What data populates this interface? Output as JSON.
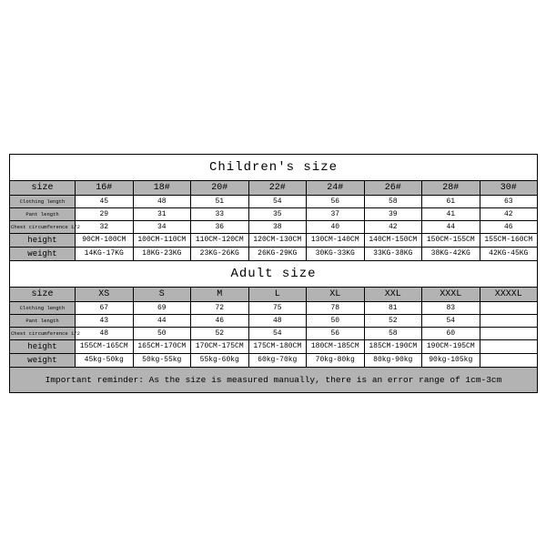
{
  "colors": {
    "header_bg": "#b3b3b3",
    "data_bg": "#ffffff",
    "border": "#000000",
    "text": "#000000"
  },
  "children": {
    "title": "Children's size",
    "size_label": "size",
    "sizes": [
      "16#",
      "18#",
      "20#",
      "22#",
      "24#",
      "26#",
      "28#",
      "30#"
    ],
    "rows": [
      {
        "label": "Clothing length",
        "cells": [
          "45",
          "48",
          "51",
          "54",
          "56",
          "58",
          "61",
          "63"
        ],
        "label_class": "lbl-sm"
      },
      {
        "label": "Pant length",
        "cells": [
          "29",
          "31",
          "33",
          "35",
          "37",
          "39",
          "41",
          "42"
        ],
        "label_class": "lbl-sm"
      },
      {
        "label": "Chest circumference 1/2",
        "cells": [
          "32",
          "34",
          "36",
          "38",
          "40",
          "42",
          "44",
          "46"
        ],
        "label_class": "lbl-sm"
      },
      {
        "label": "height",
        "cells": [
          "90CM-100CM",
          "100CM-110CM",
          "110CM-120CM",
          "120CM-130CM",
          "130CM-140CM",
          "140CM-150CM",
          "150CM-155CM",
          "155CM-160CM"
        ],
        "label_class": "lbl-md"
      },
      {
        "label": "weight",
        "cells": [
          "14KG-17KG",
          "18KG-23KG",
          "23KG-26KG",
          "26KG-29KG",
          "30KG-33KG",
          "33KG-38KG",
          "38KG-42KG",
          "42KG-45KG"
        ],
        "label_class": "lbl-md"
      }
    ]
  },
  "adult": {
    "title": "Adult size",
    "size_label": "size",
    "sizes": [
      "XS",
      "S",
      "M",
      "L",
      "XL",
      "XXL",
      "XXXL",
      "XXXXL"
    ],
    "rows": [
      {
        "label": "Clothing length",
        "cells": [
          "67",
          "69",
          "72",
          "75",
          "78",
          "81",
          "83",
          ""
        ],
        "label_class": "lbl-sm"
      },
      {
        "label": "Pant length",
        "cells": [
          "43",
          "44",
          "46",
          "48",
          "50",
          "52",
          "54",
          ""
        ],
        "label_class": "lbl-sm"
      },
      {
        "label": "Chest circumference 1/2",
        "cells": [
          "48",
          "50",
          "52",
          "54",
          "56",
          "58",
          "60",
          ""
        ],
        "label_class": "lbl-sm"
      },
      {
        "label": "height",
        "cells": [
          "155CM-165CM",
          "165CM-170CM",
          "170CM-175CM",
          "175CM-180CM",
          "180CM-185CM",
          "185CM-190CM",
          "190CM-195CM",
          ""
        ],
        "label_class": "lbl-md"
      },
      {
        "label": "weight",
        "cells": [
          "45kg-50kg",
          "50kg-55kg",
          "55kg-60kg",
          "60kg-70kg",
          "70kg-80kg",
          "80kg-90kg",
          "90kg-105kg",
          ""
        ],
        "label_class": "lbl-md"
      }
    ]
  },
  "reminder": "Important reminder: As the size is measured manually, there is an error range of 1cm-3cm"
}
